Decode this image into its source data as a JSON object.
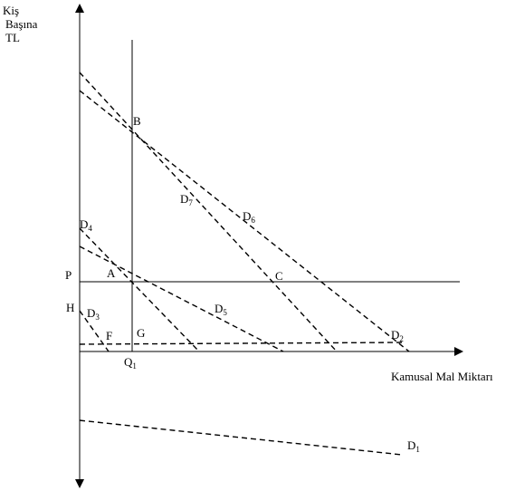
{
  "y_axis_label": [
    "Kiş",
    "Başına",
    "TL"
  ],
  "x_axis_label": "Kamusal Mal Miktarı",
  "points": {
    "P": "P",
    "A": "A",
    "B": "B",
    "C": "C",
    "H": "H",
    "F": "F",
    "G": "G",
    "Q1_main": "Q",
    "Q1_sub": "1"
  },
  "curves": {
    "D1": {
      "main": "D",
      "sub": "1"
    },
    "D2": {
      "main": "D",
      "sub": "2"
    },
    "D3": {
      "main": "D",
      "sub": "3"
    },
    "D4": {
      "main": "D",
      "sub": "4"
    },
    "D5": {
      "main": "D",
      "sub": "5"
    },
    "D6": {
      "main": "D",
      "sub": "6"
    },
    "D7": {
      "main": "D",
      "sub": "7"
    }
  }
}
